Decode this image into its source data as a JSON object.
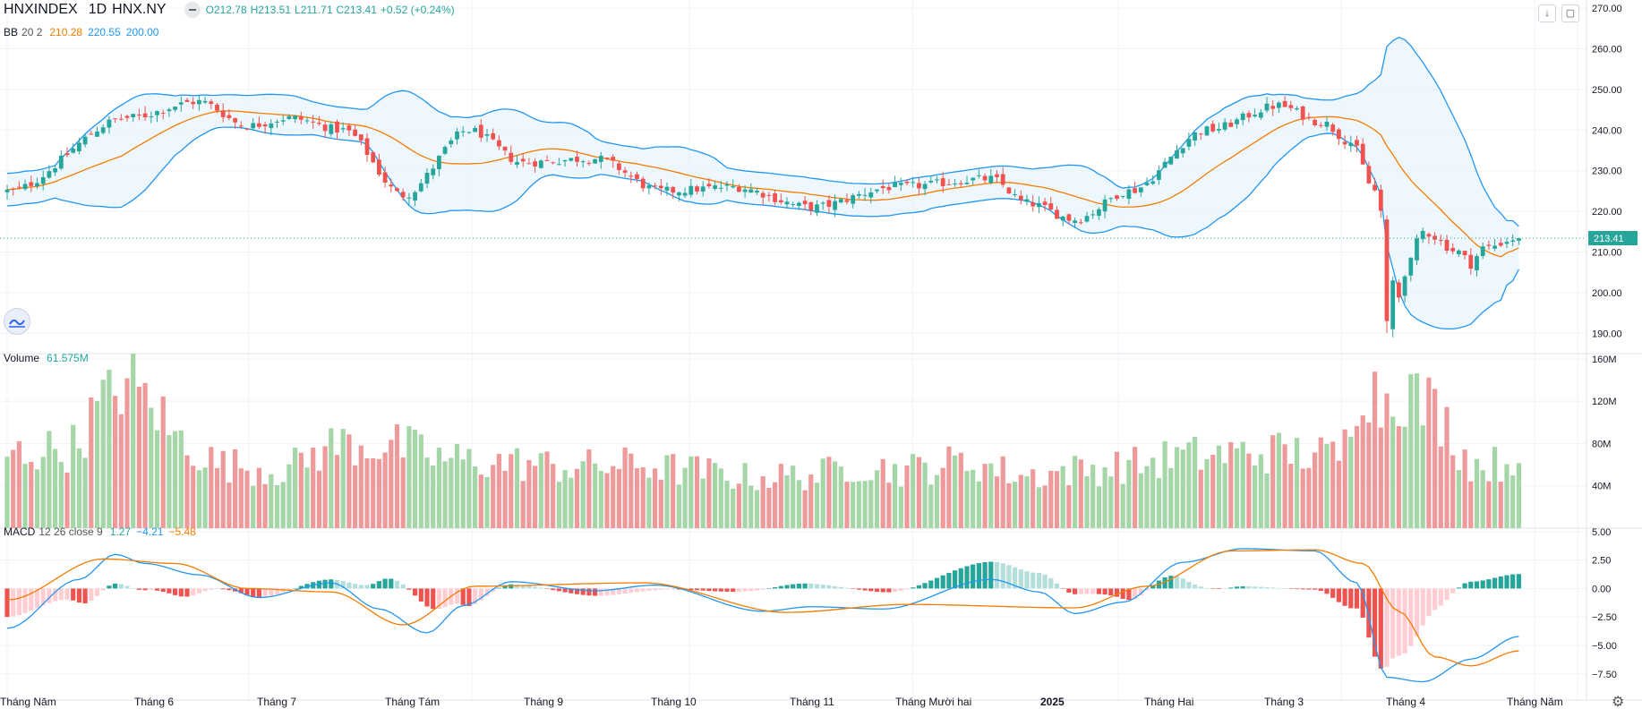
{
  "header": {
    "symbol": "HNXINDEX",
    "interval": "1D",
    "exchange": "HNX.NY",
    "ohlc": {
      "o": "O212.78",
      "h": "H213.51",
      "l": "L211.71",
      "c": "C213.41",
      "chg": "+0.52 (+0.24%)"
    }
  },
  "indicators": {
    "bb": {
      "name": "BB",
      "params": "20 2",
      "basis": "210.28",
      "upper": "220.55",
      "lower": "200.00"
    },
    "volume": {
      "name": "Volume",
      "value": "61.575M"
    },
    "macd": {
      "name": "MACD",
      "params": "12 26 close 9",
      "hist": "1.27",
      "macd": "−4.21",
      "signal": "−5.48"
    }
  },
  "price_tag": "213.41",
  "colors": {
    "up": "#26a69a",
    "down": "#ef5350",
    "bb_line": "#2196f3",
    "bb_basis": "#f57c00",
    "bb_fill": "#e3f2fd",
    "vol_up": "#a5d6a7",
    "vol_down": "#ef9a9a",
    "macd_line": "#2196f3",
    "signal_line": "#f57c00",
    "tag": "#26a69a"
  },
  "chart_data": [
    {
      "type": "candlestick",
      "title": "HNXINDEX 1D HNX.NY",
      "ylim": [
        185,
        272
      ],
      "price_axis_ticks": [
        "270.00",
        "260.00",
        "250.00",
        "240.00",
        "230.00",
        "220.00",
        "210.00",
        "200.00",
        "190.00"
      ],
      "time_axis_labels": [
        "Tháng Năm",
        "Tháng 6",
        "Tháng 7",
        "Tháng Tám",
        "Tháng 9",
        "Tháng 10",
        "Tháng 11",
        "Tháng Mười hai",
        "2025",
        "Tháng Hai",
        "Tháng 3",
        "Tháng 4",
        "Tháng Năm"
      ],
      "close_anchors": [
        [
          0,
          225
        ],
        [
          20,
          243
        ],
        [
          32,
          247
        ],
        [
          40,
          241
        ],
        [
          47,
          243
        ],
        [
          56,
          240
        ],
        [
          66,
          224
        ],
        [
          77,
          240
        ],
        [
          86,
          232
        ],
        [
          98,
          233
        ],
        [
          109,
          225
        ],
        [
          121,
          226
        ],
        [
          134,
          221
        ],
        [
          148,
          226
        ],
        [
          164,
          228
        ],
        [
          170,
          222
        ],
        [
          178,
          218
        ],
        [
          187,
          225
        ],
        [
          200,
          240
        ],
        [
          212,
          246
        ],
        [
          219,
          242
        ],
        [
          224,
          237
        ],
        [
          228,
          225
        ],
        [
          230,
          215
        ],
        [
          231,
          193
        ],
        [
          233,
          205
        ],
        [
          236,
          215
        ],
        [
          242,
          210
        ],
        [
          244,
          207
        ],
        [
          246,
          211
        ],
        [
          252,
          213.41
        ]
      ],
      "last": {
        "open": 212.78,
        "high": 213.51,
        "low": 211.71,
        "close": 213.41
      },
      "bollinger_bands": {
        "length": 20,
        "mult": 2,
        "basis": 210.28,
        "upper": 220.55,
        "lower": 200.0
      }
    },
    {
      "type": "bar",
      "title": "Volume",
      "ylim": [
        0,
        165
      ],
      "unit": "M",
      "axis_ticks": [
        "160M",
        "120M",
        "80M",
        "40M"
      ],
      "volume_anchors": [
        [
          0,
          70
        ],
        [
          10,
          75
        ],
        [
          17,
          120
        ],
        [
          19,
          140
        ],
        [
          24,
          120
        ],
        [
          28,
          85
        ],
        [
          36,
          60
        ],
        [
          45,
          55
        ],
        [
          56,
          80
        ],
        [
          64,
          78
        ],
        [
          74,
          65
        ],
        [
          82,
          62
        ],
        [
          95,
          58
        ],
        [
          105,
          60
        ],
        [
          113,
          55
        ],
        [
          124,
          48
        ],
        [
          134,
          50
        ],
        [
          142,
          60
        ],
        [
          148,
          55
        ],
        [
          160,
          62
        ],
        [
          170,
          50
        ],
        [
          179,
          55
        ],
        [
          188,
          60
        ],
        [
          196,
          68
        ],
        [
          212,
          72
        ],
        [
          222,
          68
        ],
        [
          226,
          145
        ],
        [
          229,
          120
        ],
        [
          232,
          135
        ],
        [
          237,
          115
        ],
        [
          245,
          60
        ],
        [
          252,
          61.575
        ]
      ],
      "last": 61.575
    },
    {
      "type": "line",
      "title": "MACD",
      "ylim": [
        -9.8,
        5.3
      ],
      "axis_ticks": [
        "5.00",
        "2.50",
        "0.00",
        "−2.50",
        "−5.00",
        "−7.50"
      ],
      "macd_anchors": [
        [
          0,
          -3.5
        ],
        [
          12,
          0.8
        ],
        [
          18,
          3
        ],
        [
          23,
          2.2
        ],
        [
          32,
          1.2
        ],
        [
          42,
          -0.8
        ],
        [
          54,
          0.5
        ],
        [
          62,
          -1.8
        ],
        [
          70,
          -3.9
        ],
        [
          76,
          -1.5
        ],
        [
          84,
          0.6
        ],
        [
          98,
          -0.2
        ],
        [
          108,
          0.3
        ],
        [
          126,
          -2
        ],
        [
          134,
          -1.6
        ],
        [
          146,
          -1.8
        ],
        [
          164,
          0.8
        ],
        [
          172,
          -0.3
        ],
        [
          178,
          -2.2
        ],
        [
          186,
          -1.2
        ],
        [
          196,
          2.3
        ],
        [
          206,
          3.5
        ],
        [
          218,
          3.3
        ],
        [
          225,
          0.5
        ],
        [
          230,
          -7.8
        ],
        [
          236,
          -8.2
        ],
        [
          244,
          -6.2
        ],
        [
          252,
          -4.21
        ]
      ],
      "signal_anchors": [
        [
          0,
          -1
        ],
        [
          16,
          2.6
        ],
        [
          28,
          2.2
        ],
        [
          40,
          0
        ],
        [
          54,
          -0.3
        ],
        [
          66,
          -3.2
        ],
        [
          78,
          0.2
        ],
        [
          106,
          0.5
        ],
        [
          130,
          -2.1
        ],
        [
          150,
          -1.4
        ],
        [
          178,
          -1.7
        ],
        [
          190,
          0.2
        ],
        [
          204,
          3.3
        ],
        [
          218,
          3.4
        ],
        [
          226,
          2.2
        ],
        [
          232,
          -2
        ],
        [
          238,
          -6
        ],
        [
          244,
          -6.8
        ],
        [
          252,
          -5.48
        ]
      ],
      "last": {
        "macd": -4.21,
        "signal": -5.48,
        "histogram": 1.27
      }
    }
  ]
}
